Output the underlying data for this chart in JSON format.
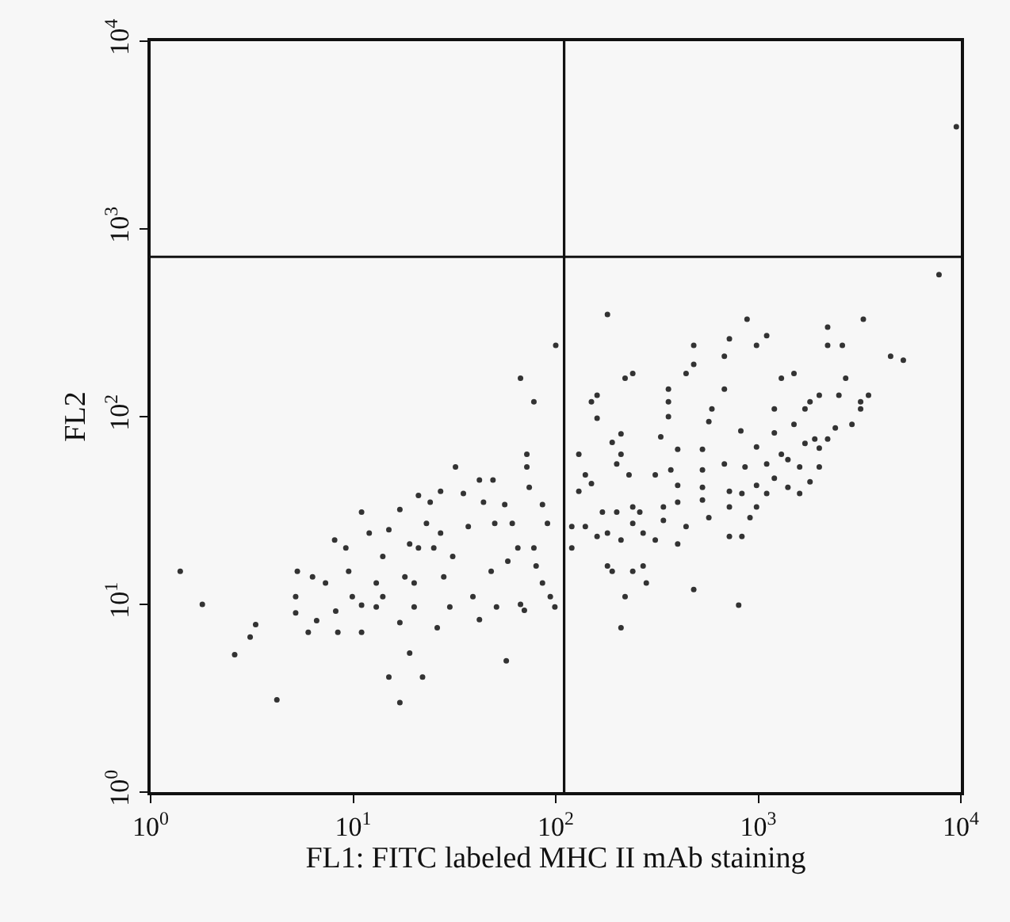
{
  "chart_data": {
    "type": "scatter",
    "xlabel": "FL1: FITC labeled MHC II mAb staining",
    "ylabel": "FL2",
    "xlim": [
      1,
      10000
    ],
    "ylim": [
      1,
      10000
    ],
    "xticks": [
      {
        "value": 1,
        "label": "10$^{0}$"
      },
      {
        "value": 10,
        "label": "10$^{1}$"
      },
      {
        "value": 100,
        "label": "10$^{2}$"
      },
      {
        "value": 1000,
        "label": "10$^{3}$"
      },
      {
        "value": 10000,
        "label": "10$^{4}$"
      }
    ],
    "yticks": [
      {
        "value": 1,
        "label": "10$^{0}$"
      },
      {
        "value": 10,
        "label": "10$^{1}$"
      },
      {
        "value": 100,
        "label": "10$^{2}$"
      },
      {
        "value": 1000,
        "label": "10$^{3}$"
      },
      {
        "value": 10000,
        "label": "10$^{4}$"
      }
    ],
    "log": "xy",
    "grid": false,
    "marker": "circle",
    "ref_lines": [
      {
        "axis": "x",
        "value": 110,
        "color": "#111111"
      },
      {
        "axis": "y",
        "value": 710,
        "color": "#111111"
      }
    ],
    "series": [
      {
        "color": "#333333",
        "x": [
          1.4,
          1.8,
          2.6,
          3.1,
          3.3,
          4.2,
          5.2,
          5.2,
          5.3,
          6.0,
          6.3,
          6.6,
          7.3,
          8.1,
          8.2,
          8.4,
          9.2,
          9.5,
          9.9,
          11,
          11,
          11,
          12,
          13,
          13,
          14,
          14,
          15,
          15,
          17,
          17,
          17,
          18,
          19,
          19,
          20,
          20,
          21,
          21,
          22,
          23,
          24,
          25,
          26,
          27,
          27,
          28,
          30,
          31,
          32,
          35,
          37,
          39,
          42,
          42,
          44,
          48,
          49,
          50,
          51,
          56,
          57,
          58,
          61,
          65,
          67,
          70,
          72,
          72,
          74,
          78,
          78,
          80,
          86,
          86,
          91,
          94,
          99,
          100,
          67,
          9500,
          7800,
          180,
          880,
          3300,
          2200,
          1100,
          980,
          480,
          720,
          2200,
          2600,
          680,
          4500,
          5200,
          480,
          440,
          240,
          220,
          1500,
          1300,
          2700,
          680,
          3500,
          2500,
          360,
          2000,
          160,
          150,
          360,
          3200,
          1700,
          1200,
          590,
          360,
          160,
          570,
          1800,
          3200,
          210,
          190,
          330,
          820,
          1200,
          1500,
          2400,
          2900,
          2200,
          1900,
          980,
          1300,
          1700,
          2000,
          400,
          530,
          130,
          210,
          680,
          860,
          1100,
          1400,
          1600,
          2000,
          200,
          370,
          530,
          310,
          230,
          140,
          1200,
          1800,
          980,
          1400,
          400,
          530,
          150,
          130,
          720,
          830,
          1100,
          1600,
          980,
          720,
          530,
          400,
          340,
          240,
          170,
          200,
          260,
          570,
          910,
          340,
          440,
          240,
          210,
          180,
          140,
          120,
          160,
          270,
          310,
          400,
          720,
          830,
          120,
          180,
          190,
          240,
          270,
          280,
          220,
          480,
          800,
          210
        ],
        "values": [
          15,
          10,
          5.4,
          6.7,
          7.8,
          3.1,
          9.0,
          11,
          15,
          7.1,
          14,
          8.2,
          13,
          22,
          9.2,
          7.1,
          20,
          15,
          11,
          7.1,
          31,
          9.9,
          24,
          13,
          9.7,
          18,
          11,
          4.1,
          25,
          3.0,
          8.0,
          32,
          14,
          5.5,
          21,
          9.7,
          13,
          20,
          38,
          4.1,
          27,
          35,
          20,
          7.5,
          40,
          24,
          14,
          9.7,
          18,
          54,
          39,
          26,
          11,
          46,
          8.3,
          35,
          15,
          46,
          27,
          9.7,
          34,
          5.0,
          17,
          27,
          20,
          10,
          9.3,
          63,
          54,
          42,
          120,
          20,
          16,
          34,
          13,
          27,
          11,
          9.7,
          240,
          160,
          3500,
          570,
          350,
          330,
          330,
          300,
          270,
          240,
          240,
          260,
          240,
          240,
          210,
          210,
          200,
          190,
          170,
          170,
          160,
          170,
          160,
          160,
          140,
          130,
          130,
          140,
          130,
          130,
          120,
          120,
          110,
          110,
          110,
          110,
          100,
          98,
          94,
          120,
          120,
          81,
          73,
          78,
          84,
          82,
          91,
          87,
          91,
          76,
          76,
          69,
          63,
          72,
          68,
          67,
          67,
          63,
          63,
          56,
          54,
          56,
          59,
          54,
          54,
          56,
          52,
          52,
          49,
          49,
          49,
          47,
          45,
          43,
          42,
          43,
          42,
          44,
          40,
          40,
          39,
          39,
          39,
          33,
          33,
          36,
          35,
          33,
          33,
          31,
          31,
          31,
          29,
          29,
          28,
          26,
          27,
          22,
          24,
          26,
          26,
          23,
          24,
          22,
          21,
          23,
          23,
          20,
          16,
          15,
          15,
          16,
          13,
          11,
          12,
          9.9,
          7.5
        ]
      }
    ]
  }
}
